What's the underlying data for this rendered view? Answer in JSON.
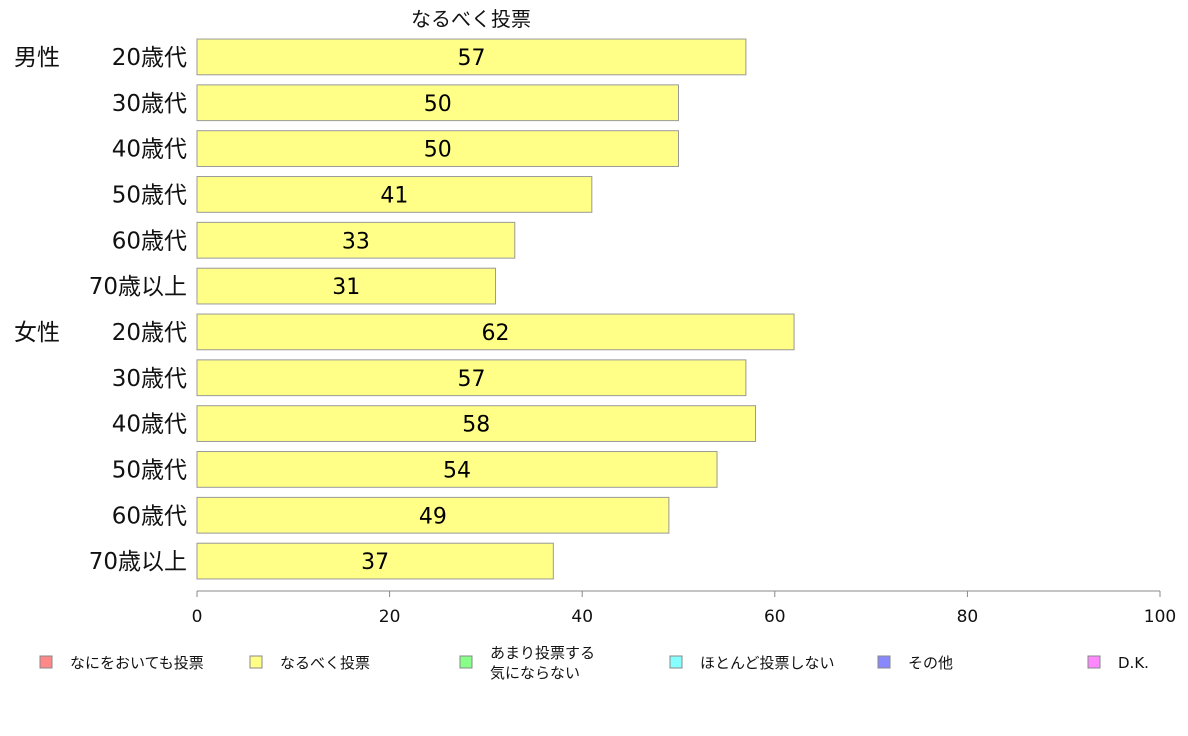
{
  "chart_data": {
    "type": "bar",
    "orientation": "horizontal",
    "stacked": true,
    "title": "なるべく投票",
    "groups": [
      {
        "label": "男性",
        "categories": [
          "20歳代",
          "30歳代",
          "40歳代",
          "50歳代",
          "60歳代",
          "70歳以上"
        ],
        "values": [
          57,
          50,
          50,
          41,
          33,
          31
        ]
      },
      {
        "label": "女性",
        "categories": [
          "20歳代",
          "30歳代",
          "40歳代",
          "50歳代",
          "60歳代",
          "70歳以上"
        ],
        "values": [
          62,
          57,
          58,
          54,
          49,
          37
        ]
      }
    ],
    "series_color": "#ffff88",
    "xlim": [
      0,
      100
    ],
    "xticks": [
      0,
      20,
      40,
      60,
      80,
      100
    ],
    "legend": {
      "placement": "bottom",
      "items": [
        {
          "lines": [
            "なにをおいても投票"
          ],
          "color": "#ff8888"
        },
        {
          "lines": [
            "なるべく投票"
          ],
          "color": "#ffff88"
        },
        {
          "lines": [
            "あまり投票する",
            "気にならない"
          ],
          "color": "#88ff88"
        },
        {
          "lines": [
            "ほとんど投票しない"
          ],
          "color": "#88ffff"
        },
        {
          "lines": [
            "その他"
          ],
          "color": "#8888ff"
        },
        {
          "lines": [
            "D.K."
          ],
          "color": "#ff88ff"
        }
      ]
    }
  }
}
